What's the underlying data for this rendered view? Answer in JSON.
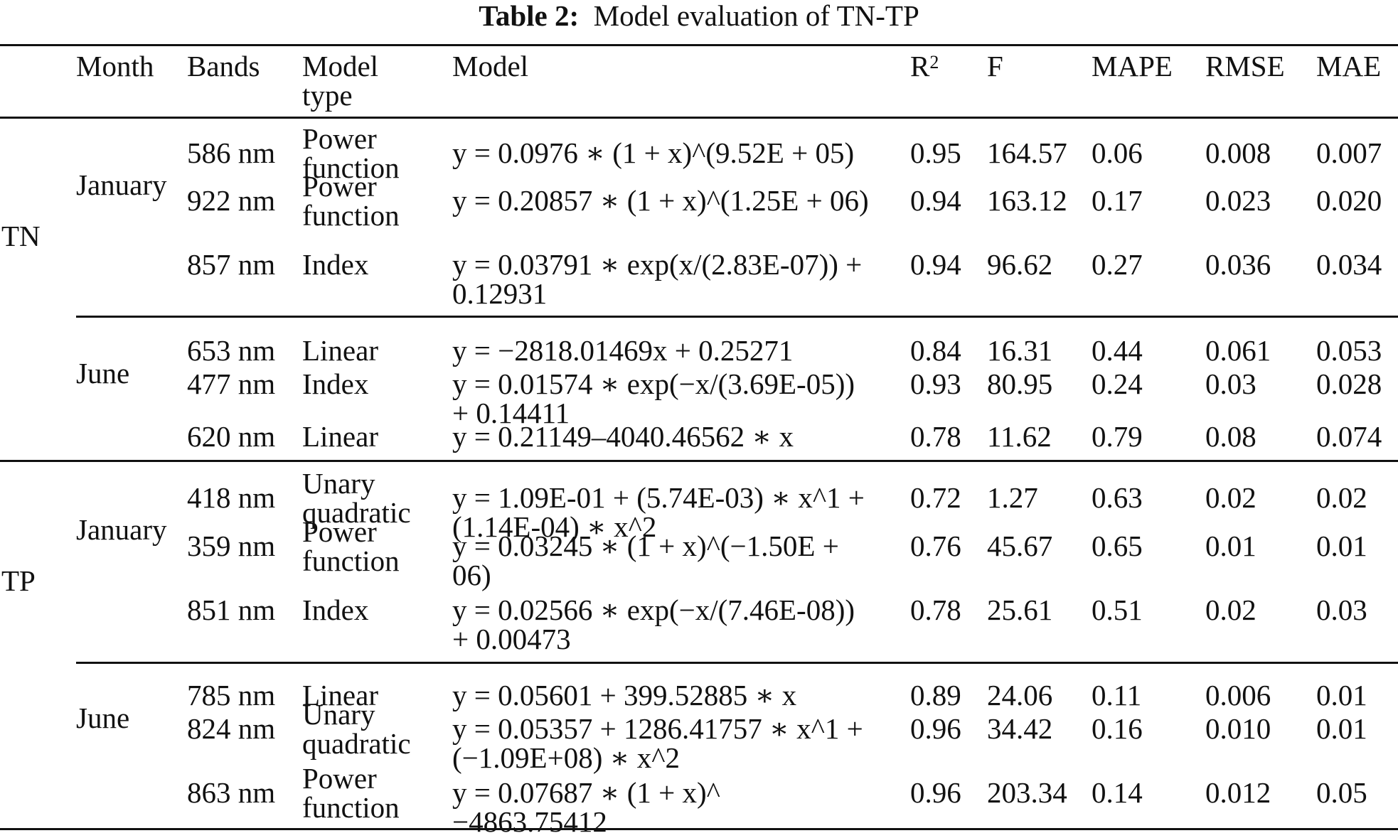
{
  "caption": {
    "label": "Table 2:",
    "text": "Model evaluation of TN-TP"
  },
  "headers": {
    "month": "Month",
    "bands": "Bands",
    "model_type_l1": "Model",
    "model_type_l2": "type",
    "model": "Model",
    "r2_base": "R",
    "r2_sup": "2",
    "f": "F",
    "mape": "MAPE",
    "rmse": "RMSE",
    "mae": "MAE"
  },
  "groups": [
    {
      "label": "TN",
      "months": [
        {
          "label": "January",
          "rows": [
            {
              "band": "586 nm",
              "type": [
                "Power",
                "function"
              ],
              "model": [
                "y = 0.0976 ∗ (1 + x)^(9.52E + 05)"
              ],
              "r2": "0.95",
              "f": "164.57",
              "mape": "0.06",
              "rmse": "0.008",
              "mae": "0.007"
            },
            {
              "band": "922 nm",
              "type": [
                "Power",
                "function"
              ],
              "model": [
                "y = 0.20857 ∗ (1 + x)^(1.25E + 06)"
              ],
              "r2": "0.94",
              "f": "163.12",
              "mape": "0.17",
              "rmse": "0.023",
              "mae": "0.020"
            },
            {
              "band": "857 nm",
              "type": [
                "Index"
              ],
              "model": [
                "y = 0.03791 ∗ exp(x/(2.83E-07)) +",
                "0.12931"
              ],
              "r2": "0.94",
              "f": "96.62",
              "mape": "0.27",
              "rmse": "0.036",
              "mae": "0.034"
            }
          ]
        },
        {
          "label": "June",
          "rows": [
            {
              "band": "653 nm",
              "type": [
                "Linear"
              ],
              "model": [
                "y = −2818.01469x + 0.25271"
              ],
              "r2": "0.84",
              "f": "16.31",
              "mape": "0.44",
              "rmse": "0.061",
              "mae": "0.053"
            },
            {
              "band": "477 nm",
              "type": [
                "Index"
              ],
              "model": [
                "y = 0.01574 ∗ exp(−x/(3.69E-05))",
                "+ 0.14411"
              ],
              "r2": "0.93",
              "f": "80.95",
              "mape": "0.24",
              "rmse": "0.03",
              "mae": "0.028"
            },
            {
              "band": "620 nm",
              "type": [
                "Linear"
              ],
              "model": [
                "y = 0.21149–4040.46562 ∗ x"
              ],
              "r2": "0.78",
              "f": "11.62",
              "mape": "0.79",
              "rmse": "0.08",
              "mae": "0.074"
            }
          ]
        }
      ]
    },
    {
      "label": "TP",
      "months": [
        {
          "label": "January",
          "rows": [
            {
              "band": "418 nm",
              "type": [
                "Unary",
                "quadratic"
              ],
              "model": [
                "y = 1.09E-01 + (5.74E-03) ∗ x^1 +",
                "(1.14E-04) ∗ x^2"
              ],
              "r2": "0.72",
              "f": "1.27",
              "mape": "0.63",
              "rmse": "0.02",
              "mae": "0.02"
            },
            {
              "band": "359 nm",
              "type": [
                "Power",
                "function"
              ],
              "model": [
                "y = 0.03245 ∗ (1 + x)^(−1.50E +",
                "06)"
              ],
              "r2": "0.76",
              "f": "45.67",
              "mape": "0.65",
              "rmse": "0.01",
              "mae": "0.01"
            },
            {
              "band": "851 nm",
              "type": [
                "Index"
              ],
              "model": [
                "y = 0.02566 ∗ exp(−x/(7.46E-08))",
                "+ 0.00473"
              ],
              "r2": "0.78",
              "f": "25.61",
              "mape": "0.51",
              "rmse": "0.02",
              "mae": "0.03"
            }
          ]
        },
        {
          "label": "June",
          "rows": [
            {
              "band": "785 nm",
              "type": [
                "Linear"
              ],
              "model": [
                "y = 0.05601 + 399.52885 ∗ x"
              ],
              "r2": "0.89",
              "f": "24.06",
              "mape": "0.11",
              "rmse": "0.006",
              "mae": "0.01"
            },
            {
              "band": "824 nm",
              "type": [
                "Unary",
                "quadratic"
              ],
              "model": [
                "y = 0.05357 + 1286.41757 ∗ x^1 +",
                "(−1.09E+08) ∗ x^2"
              ],
              "r2": "0.96",
              "f": "34.42",
              "mape": "0.16",
              "rmse": "0.010",
              "mae": "0.01"
            },
            {
              "band": "863 nm",
              "type": [
                "Power",
                "function"
              ],
              "model": [
                "y = 0.07687 ∗ (1 + x)^",
                "−4863.75412"
              ],
              "r2": "0.96",
              "f": "203.34",
              "mape": "0.14",
              "rmse": "0.012",
              "mae": "0.05"
            }
          ]
        }
      ]
    }
  ]
}
